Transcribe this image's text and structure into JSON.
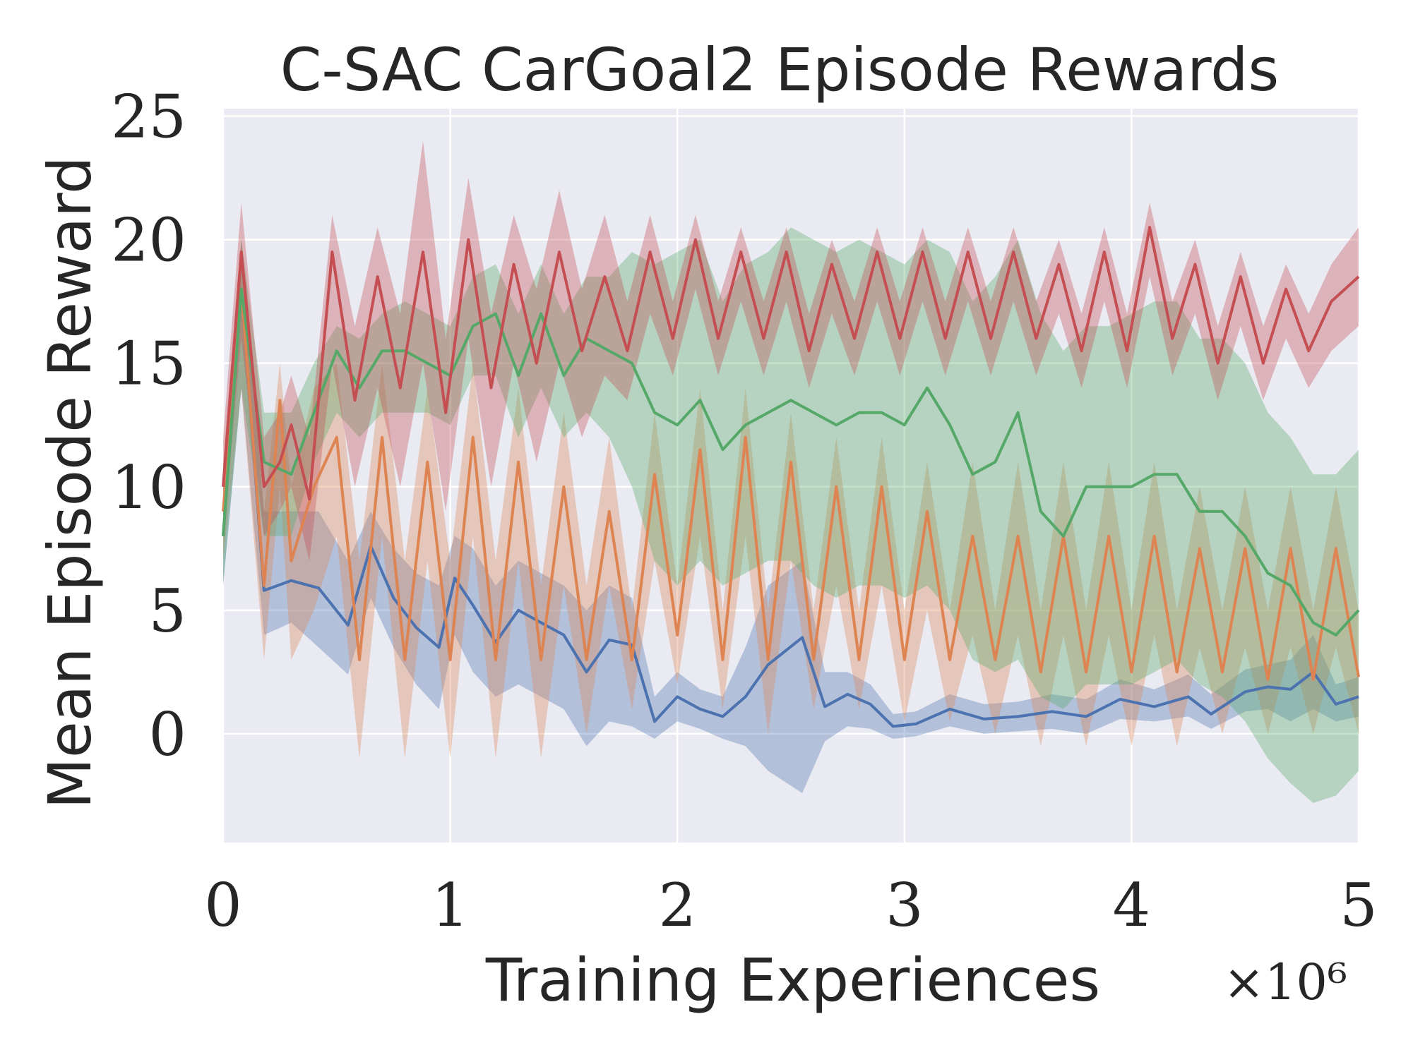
{
  "chart_data": {
    "type": "line",
    "title": "C-SAC CarGoal2 Episode Rewards",
    "xlabel": "Training Experiences",
    "ylabel": "Mean Episode Reward",
    "x_offset_text": "×10⁶",
    "xlim": [
      0,
      5
    ],
    "ylim": [
      -4.4,
      25.3
    ],
    "xticks": [
      0,
      1,
      2,
      3,
      4,
      5
    ],
    "xtick_labels": [
      "0",
      "1",
      "2",
      "3",
      "4",
      "5"
    ],
    "yticks": [
      0,
      5,
      10,
      15,
      20,
      25
    ],
    "ytick_labels": [
      "0",
      "5",
      "10",
      "15",
      "20",
      "25"
    ],
    "grid": true,
    "legend": "none",
    "series": [
      {
        "name": "blue",
        "color": "#4c72b0",
        "x": [
          0,
          0.08,
          0.18,
          0.3,
          0.42,
          0.55,
          0.65,
          0.75,
          0.85,
          0.95,
          1.02,
          1.1,
          1.2,
          1.3,
          1.4,
          1.5,
          1.6,
          1.7,
          1.8,
          1.9,
          2.0,
          2.1,
          2.2,
          2.3,
          2.4,
          2.55,
          2.65,
          2.75,
          2.85,
          2.95,
          3.05,
          3.2,
          3.35,
          3.5,
          3.65,
          3.8,
          3.95,
          4.1,
          4.25,
          4.35,
          4.5,
          4.6,
          4.7,
          4.8,
          4.9,
          5.0
        ],
        "mean": [
          8,
          18,
          5.8,
          6.2,
          5.9,
          4.4,
          7.6,
          5.5,
          4.3,
          3.5,
          6.3,
          5.2,
          3.7,
          5.0,
          4.5,
          4.0,
          2.5,
          3.8,
          3.6,
          0.5,
          1.5,
          1.0,
          0.7,
          1.5,
          2.8,
          3.9,
          1.1,
          1.6,
          1.2,
          0.3,
          0.4,
          1.0,
          0.6,
          0.7,
          0.9,
          0.7,
          1.4,
          1.1,
          1.5,
          0.8,
          1.7,
          1.9,
          1.8,
          2.5,
          1.2,
          1.5
        ],
        "lower": [
          6,
          14,
          4.0,
          4.5,
          3.5,
          2.4,
          5.5,
          3.5,
          2.0,
          1.0,
          4.0,
          2.5,
          1.5,
          2.0,
          1.5,
          1.0,
          -0.5,
          0.5,
          0.3,
          -0.2,
          0.5,
          0.2,
          -0.2,
          -0.5,
          -1.5,
          -2.4,
          -0.3,
          0.3,
          0.2,
          -0.2,
          -0.1,
          0.3,
          0.0,
          0.1,
          0.2,
          0.0,
          0.6,
          0.5,
          0.7,
          0.2,
          0.9,
          1.0,
          0.5,
          1.0,
          0.5,
          0.7
        ],
        "upper": [
          9,
          20,
          9.0,
          9.0,
          9.0,
          7.0,
          9.0,
          7.5,
          6.5,
          6.0,
          8.0,
          7.5,
          6.0,
          7.0,
          6.5,
          6.0,
          5.0,
          6.0,
          5.5,
          1.5,
          2.5,
          1.8,
          1.5,
          3.5,
          6.0,
          7.0,
          2.5,
          2.5,
          2.0,
          0.8,
          0.9,
          1.6,
          1.2,
          1.3,
          1.6,
          1.4,
          2.2,
          1.8,
          2.4,
          1.6,
          2.6,
          2.8,
          3.0,
          4.0,
          2.0,
          2.3
        ]
      },
      {
        "name": "orange",
        "color": "#dd8452",
        "x": [
          0,
          0.08,
          0.18,
          0.25,
          0.3,
          0.4,
          0.5,
          0.6,
          0.7,
          0.8,
          0.9,
          1.0,
          1.1,
          1.2,
          1.3,
          1.4,
          1.5,
          1.6,
          1.7,
          1.8,
          1.9,
          2.0,
          2.1,
          2.2,
          2.3,
          2.4,
          2.5,
          2.6,
          2.7,
          2.8,
          2.9,
          3.0,
          3.1,
          3.2,
          3.3,
          3.4,
          3.5,
          3.6,
          3.7,
          3.8,
          3.9,
          4.0,
          4.1,
          4.2,
          4.3,
          4.4,
          4.5,
          4.6,
          4.7,
          4.8,
          4.9,
          5.0
        ],
        "mean": [
          9,
          18,
          6,
          13.5,
          7,
          10,
          12,
          3,
          12,
          3,
          11,
          3,
          12,
          3,
          11,
          3,
          10,
          3,
          9,
          3,
          10.5,
          4,
          11.5,
          3,
          12,
          3,
          11,
          3,
          10,
          3,
          10,
          3,
          9,
          3,
          8,
          3,
          8,
          2.5,
          8,
          2.5,
          8,
          2.5,
          8,
          2.5,
          7.5,
          2.5,
          7.5,
          2.2,
          7.5,
          2.2,
          7.5,
          2.3
        ],
        "lower": [
          7,
          14,
          3,
          10,
          3,
          5,
          8,
          -1,
          8,
          -1,
          7,
          -1,
          8,
          -1,
          7,
          -1,
          6,
          0,
          6,
          1,
          7,
          2,
          8,
          1,
          8,
          0,
          7,
          1,
          6,
          1,
          6,
          0.5,
          5,
          0.5,
          4,
          0,
          4,
          -0.5,
          4,
          -0.5,
          4,
          -0.5,
          4,
          -0.5,
          3.5,
          0,
          3.5,
          0,
          3.5,
          0,
          3.5,
          0
        ],
        "upper": [
          11,
          20,
          9,
          15,
          10,
          14,
          15,
          7,
          15,
          7,
          14,
          7,
          15,
          7,
          14,
          6,
          13,
          6,
          12,
          5,
          13,
          6,
          14,
          5,
          14,
          5,
          13,
          5,
          12,
          5,
          12,
          5,
          11,
          5,
          11,
          5,
          11,
          5,
          11,
          5,
          11,
          5,
          11,
          5,
          10,
          5,
          10,
          5,
          10,
          5,
          10,
          5
        ]
      },
      {
        "name": "green",
        "color": "#55a868",
        "x": [
          0,
          0.08,
          0.18,
          0.3,
          0.4,
          0.5,
          0.6,
          0.7,
          0.8,
          0.9,
          1.0,
          1.1,
          1.2,
          1.3,
          1.4,
          1.5,
          1.6,
          1.7,
          1.8,
          1.9,
          2.0,
          2.1,
          2.2,
          2.3,
          2.4,
          2.5,
          2.6,
          2.7,
          2.8,
          2.9,
          3.0,
          3.1,
          3.2,
          3.3,
          3.4,
          3.5,
          3.6,
          3.7,
          3.8,
          3.9,
          4.0,
          4.1,
          4.2,
          4.3,
          4.4,
          4.5,
          4.6,
          4.7,
          4.8,
          4.9,
          5.0
        ],
        "mean": [
          8,
          18,
          11,
          10.5,
          13,
          15.5,
          14,
          15.5,
          15.5,
          15,
          14.5,
          16.5,
          17,
          14.5,
          17,
          14.5,
          16,
          15.5,
          15,
          13,
          12.5,
          13.5,
          11.5,
          12.5,
          13,
          13.5,
          13,
          12.5,
          13,
          13,
          12.5,
          14,
          12.5,
          10.5,
          11,
          13,
          9,
          8,
          10,
          10,
          10,
          10.5,
          10.5,
          9,
          9,
          8,
          6.5,
          6,
          4.5,
          4,
          5
        ],
        "lower": [
          6,
          14,
          8,
          8,
          11,
          13,
          12,
          13,
          13,
          13,
          12.5,
          14.5,
          14.5,
          12,
          14,
          12,
          13,
          12,
          10,
          7,
          6,
          7,
          6,
          6.5,
          7,
          7,
          6,
          5.5,
          6,
          6,
          5.5,
          6,
          5,
          3,
          2.5,
          3,
          1.5,
          1,
          2,
          2,
          2,
          2.5,
          3,
          2,
          1.5,
          0.5,
          -1,
          -2,
          -2.8,
          -2.5,
          -1.5
        ],
        "upper": [
          10,
          20,
          13,
          13,
          15,
          16.5,
          16,
          17,
          17.5,
          17,
          16.5,
          18.5,
          19,
          17,
          19,
          17,
          18.5,
          18.5,
          19.5,
          19,
          19.5,
          20,
          17.5,
          19,
          19.5,
          20.5,
          20,
          19.5,
          20,
          19.5,
          19,
          20,
          19.5,
          17.5,
          18.5,
          20,
          17,
          15.5,
          16.5,
          16.5,
          17,
          17.5,
          17.5,
          16,
          16,
          15,
          13,
          12,
          10.5,
          10.5,
          11.5
        ]
      },
      {
        "name": "red",
        "color": "#c44e52",
        "x": [
          0,
          0.08,
          0.18,
          0.25,
          0.3,
          0.38,
          0.48,
          0.58,
          0.68,
          0.78,
          0.88,
          0.98,
          1.08,
          1.18,
          1.28,
          1.38,
          1.48,
          1.58,
          1.68,
          1.78,
          1.88,
          1.98,
          2.08,
          2.18,
          2.28,
          2.38,
          2.48,
          2.58,
          2.68,
          2.78,
          2.88,
          2.98,
          3.08,
          3.18,
          3.28,
          3.38,
          3.48,
          3.58,
          3.68,
          3.78,
          3.88,
          3.98,
          4.08,
          4.18,
          4.28,
          4.38,
          4.48,
          4.58,
          4.68,
          4.78,
          4.88,
          5.0
        ],
        "mean": [
          10,
          19.5,
          10,
          11,
          12.5,
          9.5,
          19.5,
          13.5,
          18.5,
          14,
          19.5,
          13,
          20,
          14,
          19,
          15,
          19.5,
          15.5,
          18.5,
          15.5,
          19.5,
          16,
          20,
          16,
          19.5,
          16,
          19.5,
          15.5,
          19,
          16,
          19.5,
          16,
          19.5,
          16,
          19.5,
          16,
          19.5,
          16,
          19,
          15.5,
          19.5,
          15.5,
          20.5,
          16,
          19,
          15,
          18.5,
          15,
          18,
          15.5,
          17.5,
          18.5
        ],
        "lower": [
          8,
          16,
          8,
          9,
          10,
          7,
          15,
          10,
          14,
          10,
          15,
          9,
          16,
          10,
          15,
          11,
          15,
          12,
          14.5,
          13.5,
          17,
          14.5,
          18,
          14.5,
          17.5,
          14.5,
          17.5,
          14,
          17,
          14.5,
          17.5,
          14.5,
          17.5,
          14.5,
          17.5,
          14.5,
          17.5,
          14.5,
          17,
          14,
          17.5,
          14,
          18.5,
          14.5,
          17,
          13.5,
          16.5,
          13.5,
          16,
          14,
          15.5,
          16.5
        ],
        "upper": [
          12,
          21.5,
          12,
          13,
          14.5,
          12,
          21,
          16.5,
          20.5,
          17,
          24,
          16,
          22.5,
          17,
          21,
          18,
          22,
          18,
          21,
          17.5,
          21,
          17.5,
          21,
          17.5,
          20.5,
          17.5,
          20.5,
          17,
          20,
          17.5,
          20.5,
          17.5,
          20.5,
          17.5,
          20.5,
          17.5,
          20.5,
          17.5,
          20,
          17,
          20.5,
          17,
          21.5,
          17.5,
          20,
          16.5,
          19.5,
          16.5,
          19,
          17,
          19,
          20.5
        ]
      }
    ]
  }
}
